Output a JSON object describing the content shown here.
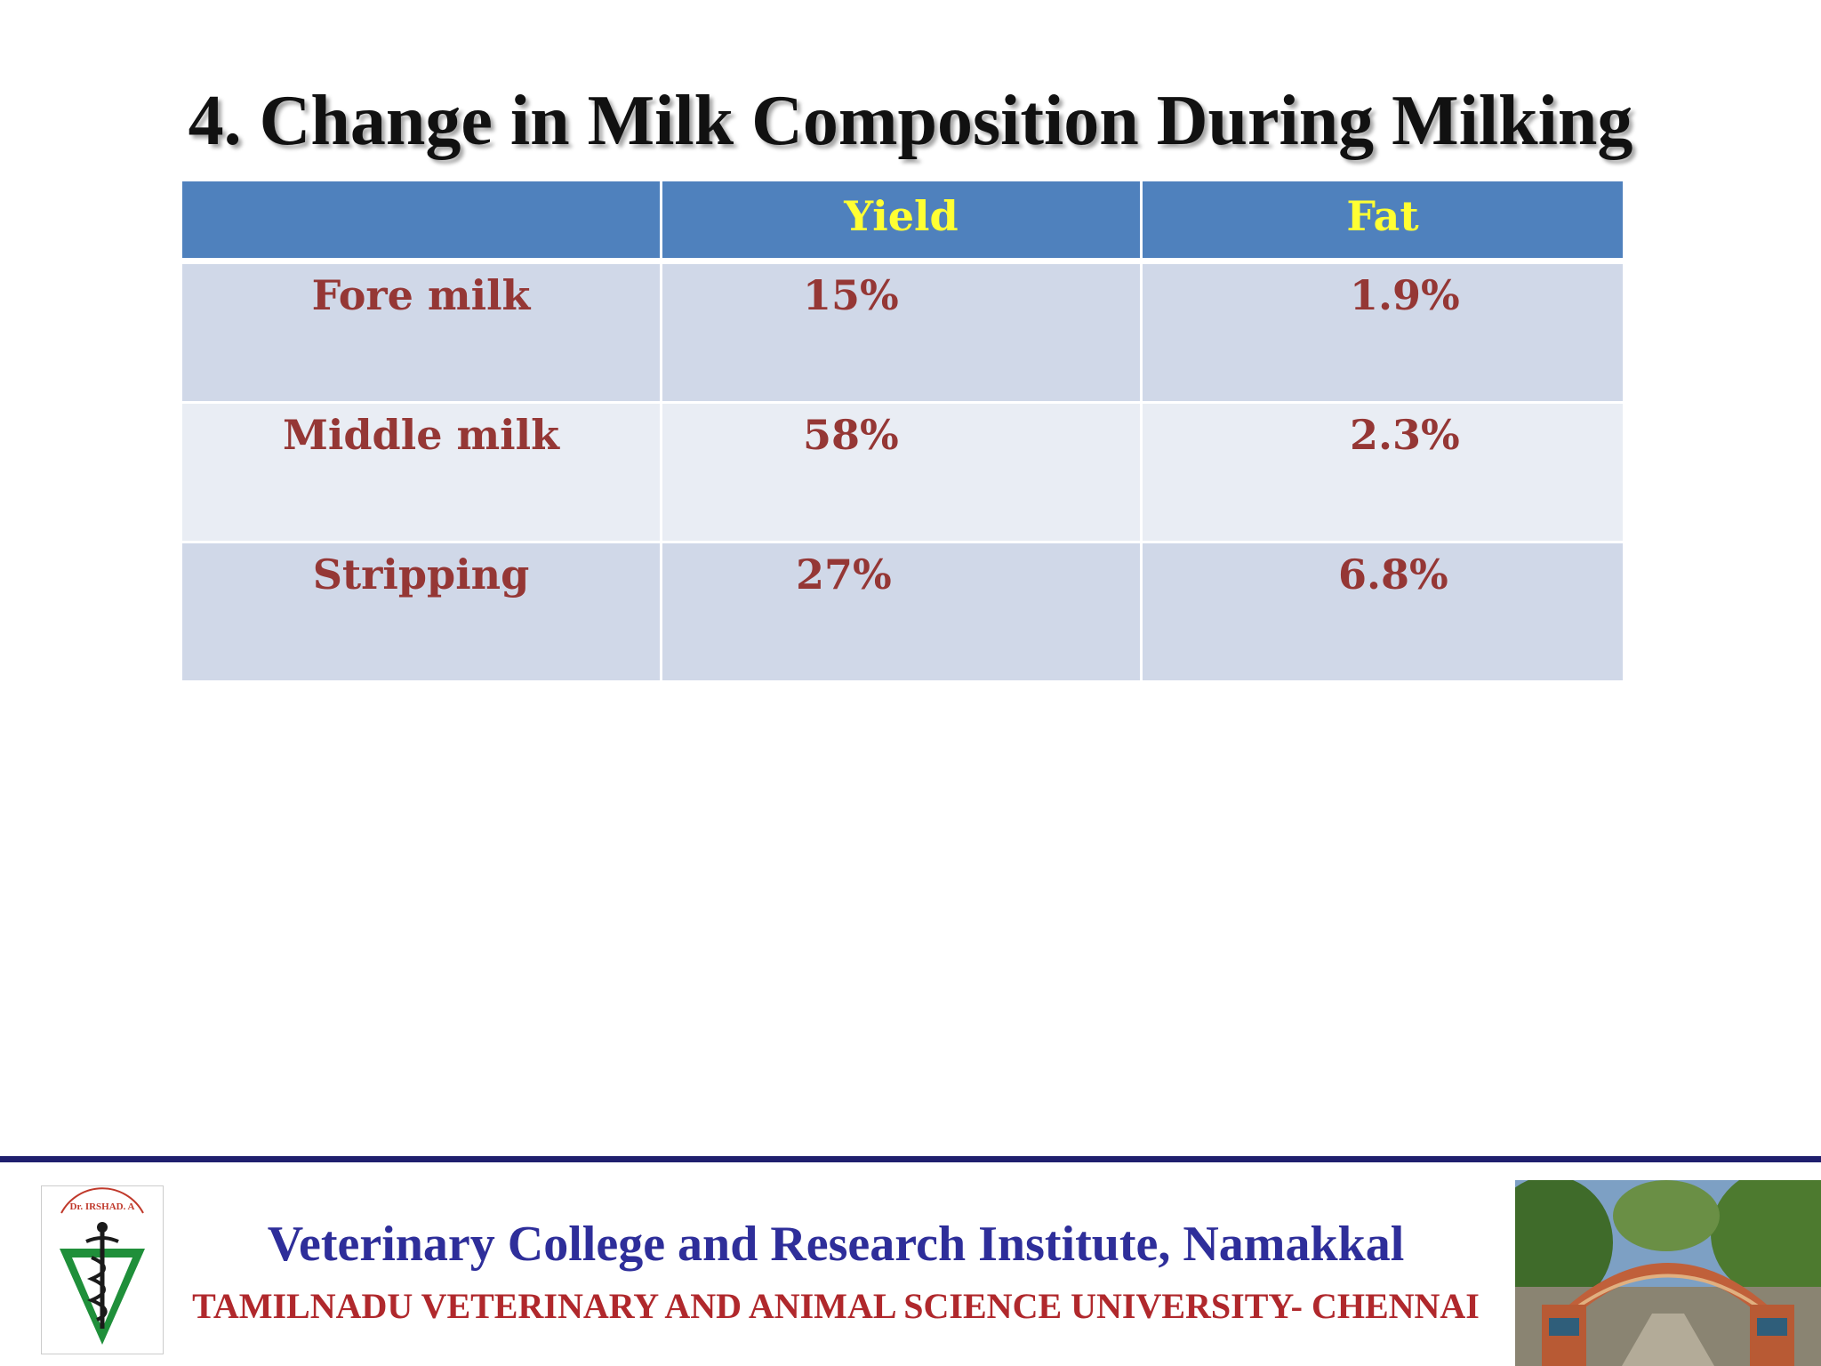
{
  "title": "4. Change in Milk Composition During Milking",
  "table": {
    "headers": [
      "",
      "Yield",
      "Fat"
    ],
    "rows": [
      {
        "label": "Fore milk",
        "yield": "15%",
        "fat": "1.9%"
      },
      {
        "label": "Middle milk",
        "yield": "58%",
        "fat": "2.3%"
      },
      {
        "label": "Stripping",
        "yield": "27%",
        "fat": "6.8%"
      }
    ]
  },
  "footer": {
    "line1": "Veterinary College and Research Institute, Namakkal",
    "line2": "TAMILNADU VETERINARY AND ANIMAL SCIENCE UNIVERSITY- CHENNAI",
    "logo_text": "Dr. IRSHAD. A"
  },
  "colors": {
    "header_bg": "#4f81bd",
    "header_text": "#ffff33",
    "row_odd": "#d0d8e8",
    "row_even": "#e9edf4",
    "cell_text": "#953735",
    "footer_line": "#1f1f6e",
    "footer_blue": "#2e2e9a",
    "footer_red": "#b0282c"
  }
}
